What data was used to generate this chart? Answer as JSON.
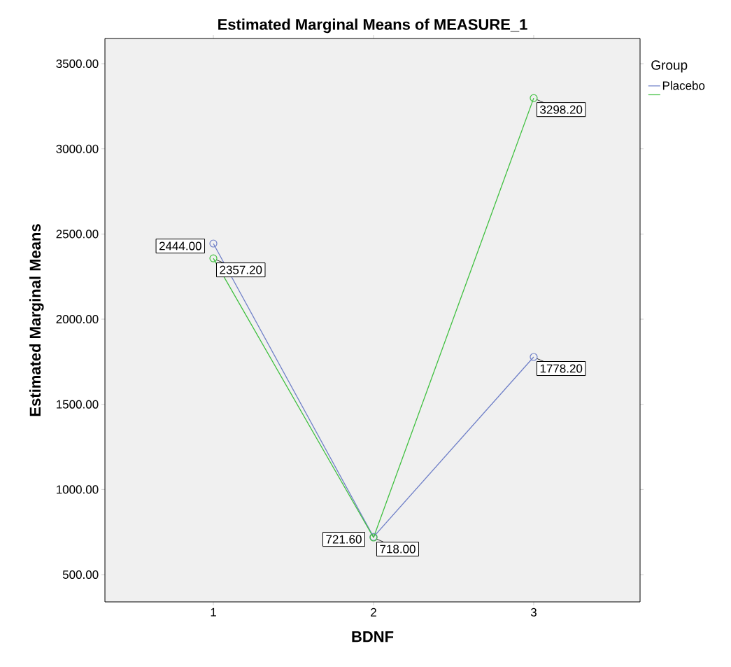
{
  "chart_data": {
    "type": "line",
    "title": "Estimated Marginal Means of MEASURE_1",
    "xlabel": "BDNF",
    "ylabel": "Estimated Marginal Means",
    "legend_title": "Group",
    "categories": [
      "1",
      "2",
      "3"
    ],
    "series": [
      {
        "name": "Placebo",
        "color": "#7080c8",
        "values": [
          2444.0,
          721.6,
          1778.2
        ],
        "value_labels": [
          "2444.00",
          "721.60",
          "1778.20"
        ]
      },
      {
        "color": "#40c040",
        "values": [
          2357.2,
          718.0,
          3298.2
        ],
        "value_labels": [
          "2357.20",
          "718.00",
          "3298.20"
        ]
      }
    ],
    "ylim": [
      340,
      3648
    ],
    "yticks": [
      {
        "value": 500,
        "label": "500.00"
      },
      {
        "value": 1000,
        "label": "1000.00"
      },
      {
        "value": 1500,
        "label": "1500.00"
      },
      {
        "value": 2000,
        "label": "2000.00"
      },
      {
        "value": 2500,
        "label": "2500.00"
      },
      {
        "value": 3000,
        "label": "3000.00"
      },
      {
        "value": 3500,
        "label": "3500.00"
      }
    ],
    "marker": "circle",
    "line_style": "solid",
    "grid": false,
    "legend": "top right"
  }
}
